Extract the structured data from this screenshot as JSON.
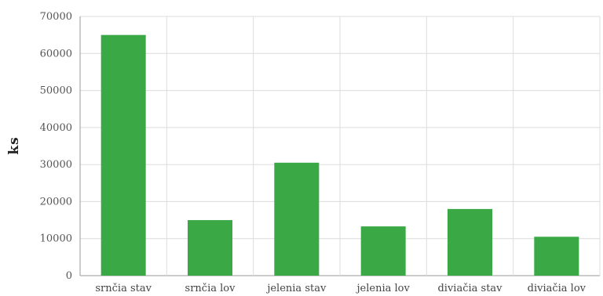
{
  "chart_data": {
    "type": "bar",
    "categories": [
      "srnčia stav",
      "srnčia lov",
      "jelenia stav",
      "jelenia lov",
      "diviačia stav",
      "diviačia lov"
    ],
    "values": [
      65000,
      15000,
      30500,
      13300,
      18000,
      10500
    ],
    "ylabel": "ks",
    "ylim": [
      0,
      70000
    ],
    "yticks": [
      0,
      10000,
      20000,
      30000,
      40000,
      50000,
      60000,
      70000
    ],
    "grid": true,
    "bar_color": "#3aa845"
  }
}
